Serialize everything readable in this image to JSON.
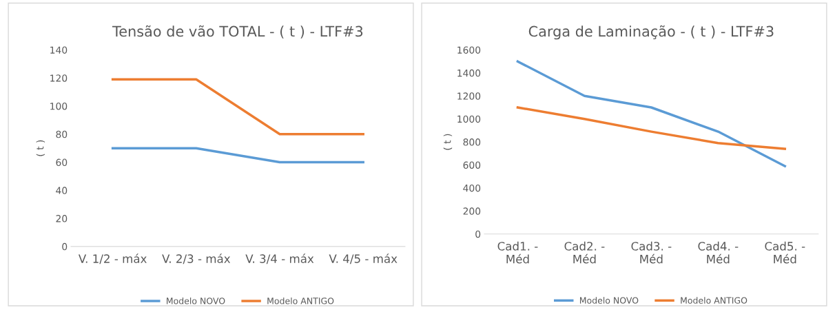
{
  "chart_data": [
    {
      "type": "line",
      "title": "Tensão de vão TOTAL - ( t ) - LTF#3",
      "ylabel": "( t )",
      "categories": [
        "V. 1/2 - máx",
        "V. 2/3 - máx",
        "V. 3/4 - máx",
        "V. 4/5 - máx"
      ],
      "ylim": [
        0,
        140
      ],
      "yticks": [
        0,
        20,
        40,
        60,
        80,
        100,
        120,
        140
      ],
      "grid": false,
      "legend": "bottom",
      "marker": "none",
      "line_style": "solid",
      "series": [
        {
          "name": "Modelo NOVO",
          "color": "#5b9bd5",
          "values": [
            70,
            70,
            60,
            60
          ]
        },
        {
          "name": "Modelo ANTIGO",
          "color": "#ed7d31",
          "values": [
            119,
            119,
            80,
            80
          ]
        }
      ]
    },
    {
      "type": "line",
      "title": "Carga de Laminação - ( t ) - LTF#3",
      "ylabel": "( t )",
      "categories": [
        "Cad1. -\nMéd",
        "Cad2. -\nMéd",
        "Cad3. -\nMéd",
        "Cad4. -\nMéd",
        "Cad5. -\nMéd"
      ],
      "ylim": [
        0,
        1600
      ],
      "yticks": [
        0,
        200,
        400,
        600,
        800,
        1000,
        1200,
        1400,
        1600
      ],
      "grid": false,
      "legend": "bottom",
      "marker": "none",
      "line_style": "solid",
      "series": [
        {
          "name": "Modelo NOVO",
          "color": "#5b9bd5",
          "values": [
            1500,
            1200,
            1100,
            890,
            590
          ]
        },
        {
          "name": "Modelo ANTIGO",
          "color": "#ed7d31",
          "values": [
            1100,
            1000,
            890,
            790,
            740
          ]
        }
      ]
    }
  ]
}
